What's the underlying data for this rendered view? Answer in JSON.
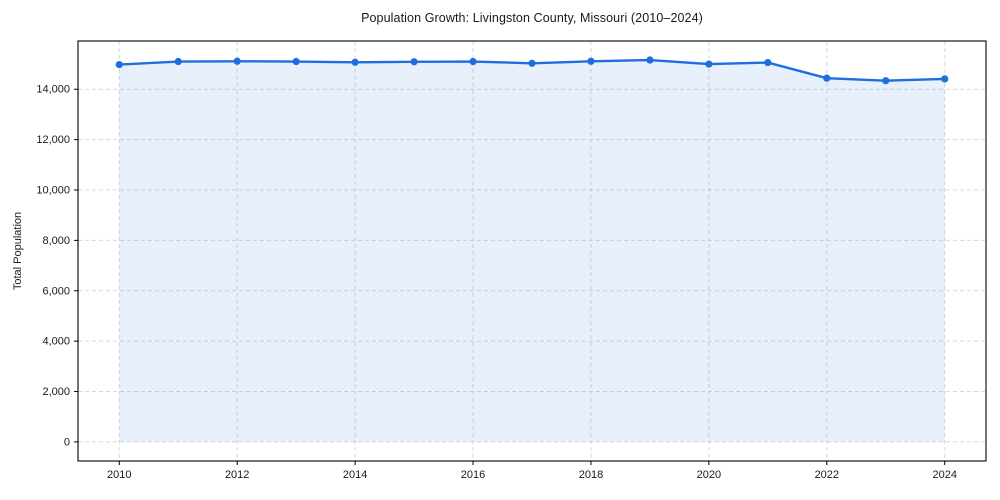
{
  "title": "Population Growth: Livingston County, Missouri (2010–2024)",
  "chart_data": {
    "type": "line",
    "title": "Population Growth: Livingston County, Missouri (2010–2024)",
    "xlabel": "",
    "ylabel": "Total Population",
    "x": [
      2010,
      2011,
      2012,
      2013,
      2014,
      2015,
      2016,
      2017,
      2018,
      2019,
      2020,
      2021,
      2022,
      2023,
      2024
    ],
    "series": [
      {
        "name": "Total Population",
        "values": [
          14980,
          15100,
          15110,
          15100,
          15070,
          15090,
          15100,
          15030,
          15110,
          15160,
          15000,
          15060,
          14440,
          14340,
          14410
        ]
      }
    ],
    "x_ticks": [
      2010,
      2012,
      2014,
      2016,
      2018,
      2020,
      2022,
      2024
    ],
    "y_ticks": [
      0,
      2000,
      4000,
      6000,
      8000,
      10000,
      12000,
      14000
    ],
    "xlim": [
      2009.3,
      2024.7
    ],
    "ylim": [
      -758,
      15915
    ],
    "grid": true,
    "grid_style": "dashed",
    "legend": false,
    "fill_to_zero": true,
    "colors": {
      "line": "#1f6ee0",
      "marker": "#1f6ee0",
      "fill": "rgba(31, 110, 224, 0.10)",
      "grid": "#d9d9d9",
      "axis_box": "#000000",
      "text": "#1a1a1a",
      "background": "#ffffff"
    }
  }
}
